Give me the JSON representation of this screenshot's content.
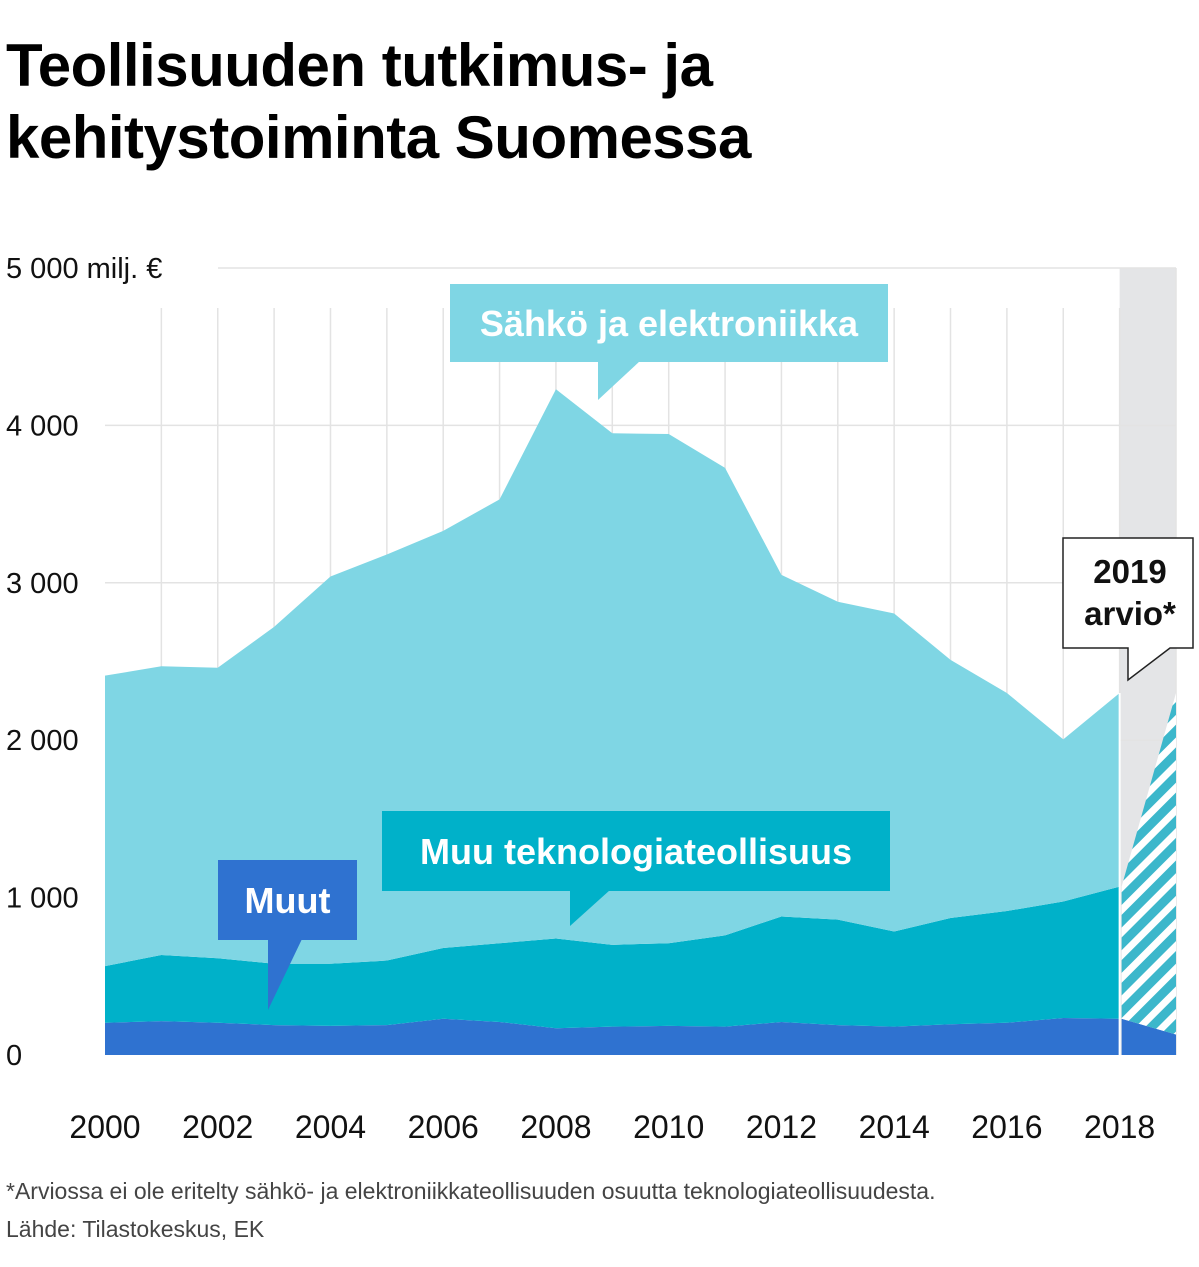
{
  "title_line1": "Teollisuuden tutkimus- ja",
  "title_line2": "kehitystoiminta Suomessa",
  "footnote": "*Arviossa ei ole eritelty sähkö- ja elektroniikkateollisuuden osuutta teknologiateollisuudesta.",
  "source": "Lähde: Tilastokeskus, EK",
  "colors": {
    "sahko": "#7fd6e4",
    "muu_tekno": "#00b1c9",
    "muut": "#2f72d0",
    "estimate_band": "#e4e5e7",
    "grid": "#e3e3e3"
  },
  "chart_data": {
    "type": "area",
    "stacked": true,
    "x": [
      2000,
      2001,
      2002,
      2003,
      2004,
      2005,
      2006,
      2007,
      2008,
      2009,
      2010,
      2011,
      2012,
      2013,
      2014,
      2015,
      2016,
      2017,
      2018,
      2019
    ],
    "ylim": [
      0,
      5000
    ],
    "y_ticks": [
      {
        "value": 0,
        "label": "0"
      },
      {
        "value": 1000,
        "label": "1 000"
      },
      {
        "value": 2000,
        "label": "2 000"
      },
      {
        "value": 3000,
        "label": "3 000"
      },
      {
        "value": 4000,
        "label": "4 000"
      },
      {
        "value": 5000,
        "label": "5 000 milj. €"
      }
    ],
    "x_ticks": [
      "2000",
      "2002",
      "2004",
      "2006",
      "2008",
      "2010",
      "2012",
      "2014",
      "2016",
      "2018"
    ],
    "grid": true,
    "series": [
      {
        "name": "Muut",
        "color": "#2f72d0",
        "values": [
          205,
          215,
          205,
          190,
          185,
          190,
          230,
          210,
          170,
          180,
          185,
          180,
          210,
          190,
          180,
          195,
          205,
          235,
          230,
          130
        ]
      },
      {
        "name": "Muu teknologiateollisuus",
        "color": "#00b1c9",
        "values": [
          360,
          420,
          410,
          390,
          395,
          410,
          450,
          500,
          570,
          520,
          525,
          580,
          670,
          670,
          605,
          675,
          710,
          740,
          840,
          2170
        ]
      },
      {
        "name": "Sähkö ja elektroniikka",
        "color": "#7fd6e4",
        "values": [
          1845,
          1835,
          1845,
          2140,
          2460,
          2580,
          2650,
          2820,
          3490,
          3250,
          3235,
          2970,
          2170,
          2020,
          2020,
          1640,
          1385,
          1030,
          1230,
          0
        ]
      }
    ],
    "estimate": {
      "from": 2018,
      "to": 2019,
      "label_line1": "2019",
      "label_line2": "arvio*"
    },
    "callouts": {
      "sahko": "Sähkö ja elektroniikka",
      "muu_tekno": "Muu teknologiateollisuus",
      "muut": "Muut"
    }
  }
}
